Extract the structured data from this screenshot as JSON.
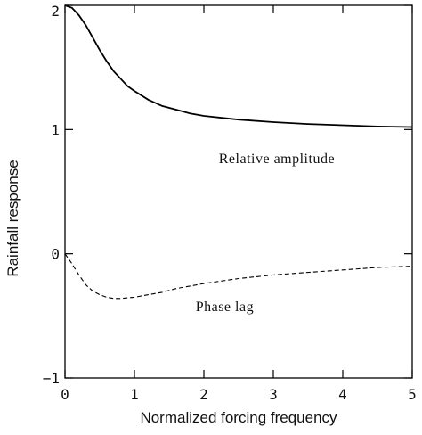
{
  "chart_data": {
    "type": "line",
    "xlabel": "Normalized forcing frequency",
    "ylabel": "Rainfall response",
    "xlim": [
      0,
      5
    ],
    "ylim": [
      -1,
      2
    ],
    "x_ticks": [
      0,
      1,
      2,
      3,
      4,
      5
    ],
    "y_ticks": [
      -1,
      0,
      1,
      2
    ],
    "x_tick_labels": [
      "0",
      "1",
      "2",
      "3",
      "4",
      "5"
    ],
    "y_tick_labels": [
      "−1",
      "0",
      "1",
      "2"
    ],
    "grid": false,
    "legend": "none",
    "series": [
      {
        "style": "solid",
        "color": "#000000",
        "x": [
          0,
          0.1,
          0.2,
          0.3,
          0.4,
          0.5,
          0.6,
          0.7,
          0.8,
          0.9,
          1.0,
          1.2,
          1.4,
          1.6,
          1.8,
          2.0,
          2.5,
          3.0,
          3.5,
          4.0,
          4.5,
          5.0
        ],
        "y": [
          2.0,
          1.98,
          1.92,
          1.84,
          1.74,
          1.64,
          1.55,
          1.47,
          1.41,
          1.35,
          1.31,
          1.24,
          1.19,
          1.16,
          1.13,
          1.11,
          1.08,
          1.06,
          1.045,
          1.035,
          1.025,
          1.02
        ]
      },
      {
        "style": "dashed",
        "color": "#000000",
        "x": [
          0,
          0.1,
          0.2,
          0.3,
          0.4,
          0.5,
          0.6,
          0.7,
          0.8,
          0.9,
          1.0,
          1.2,
          1.4,
          1.6,
          1.8,
          2.0,
          2.5,
          3.0,
          3.5,
          4.0,
          4.5,
          5.0
        ],
        "y": [
          0.0,
          -0.08,
          -0.17,
          -0.25,
          -0.3,
          -0.33,
          -0.35,
          -0.36,
          -0.36,
          -0.355,
          -0.35,
          -0.33,
          -0.31,
          -0.28,
          -0.26,
          -0.24,
          -0.2,
          -0.17,
          -0.15,
          -0.13,
          -0.11,
          -0.1
        ]
      }
    ],
    "annotations": [
      {
        "text": "Relative amplitude",
        "x": 3.05,
        "y": 0.73
      },
      {
        "text": "Phase lag",
        "x": 2.3,
        "y": -0.46
      }
    ]
  }
}
